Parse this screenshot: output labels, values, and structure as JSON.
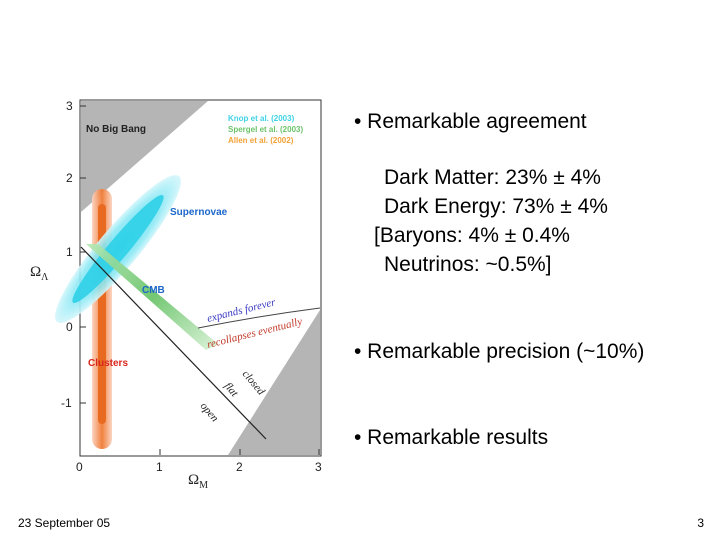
{
  "figure": {
    "y_axis_label": "Ω",
    "y_axis_sub": "Λ",
    "x_axis_label": "Ω",
    "x_axis_sub": "M",
    "y_ticks": [
      "3",
      "2",
      "1",
      "0",
      "-1"
    ],
    "x_ticks": [
      "0",
      "1",
      "2",
      "3"
    ],
    "legend": [
      {
        "text": "Knop et al. (2003)",
        "color": "#3fd3e6"
      },
      {
        "text": "Spergel et al. (2003)",
        "color": "#6cc36a"
      },
      {
        "text": "Allen et al. (2002)",
        "color": "#f2a237"
      }
    ],
    "labels": {
      "no_big_bang": "No Big Bang",
      "supernovae": "Supernovae",
      "cmb": "CMB",
      "clusters": "Clusters",
      "expands": "expands forever",
      "recollapses": "recollapses eventually",
      "closed": "closed",
      "flat": "flat",
      "open": "open"
    }
  },
  "content": {
    "bullet1": "• Remarkable agreement",
    "components": [
      "Dark Matter: 23% ± 4%",
      "Dark Energy: 73% ± 4%",
      "[Baryons: 4% ± 0.4%",
      "Neutrinos: ~0.5%]"
    ],
    "bullet2": "• Remarkable precision (~10%)",
    "bullet3": "• Remarkable results"
  },
  "footer": {
    "date": "23 September  05",
    "page": "3"
  }
}
